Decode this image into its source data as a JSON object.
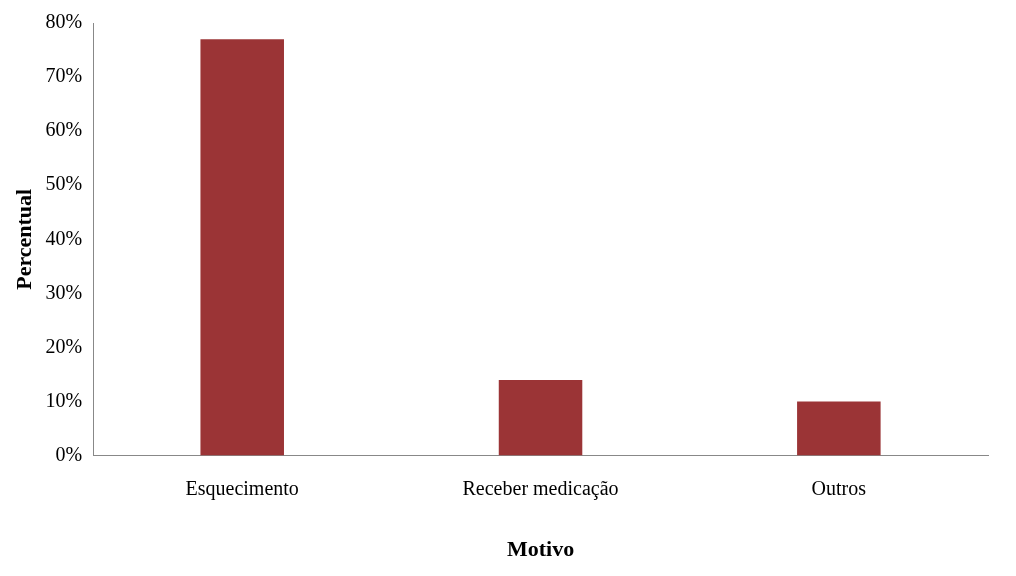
{
  "chart_data": {
    "type": "bar",
    "xlabel": "Motivo",
    "ylabel": "Percentual",
    "categories": [
      "Esquecimento",
      "Receber medicação",
      "Outros"
    ],
    "values": [
      77,
      14,
      10
    ],
    "color": "#9b3436",
    "ylim": [
      0,
      80
    ],
    "yticks": [
      {
        "value": 0,
        "label": "0%"
      },
      {
        "value": 10,
        "label": "10%"
      },
      {
        "value": 20,
        "label": "20%"
      },
      {
        "value": 30,
        "label": "30%"
      },
      {
        "value": 40,
        "label": "40%"
      },
      {
        "value": 50,
        "label": "50%"
      },
      {
        "value": 60,
        "label": "60%"
      },
      {
        "value": 70,
        "label": "70%"
      },
      {
        "value": 80,
        "label": "80%"
      }
    ],
    "grid": false,
    "legend": false
  }
}
